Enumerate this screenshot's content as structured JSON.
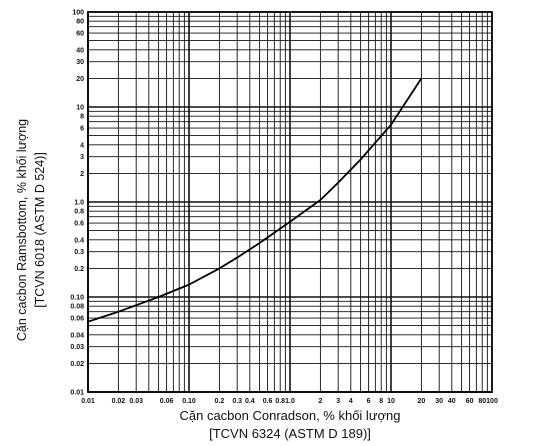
{
  "chart_data": {
    "type": "line",
    "title": "",
    "xlabel": [
      "Cặn cacbon Conradson, % khối lượng",
      "[TCVN 6324 (ASTM D 189)]"
    ],
    "ylabel": [
      "Cặn cacbon Ramsbottom, % khối lượng",
      "[TCVN 6018 (ASTM D 524)]"
    ],
    "x_scale": "log",
    "y_scale": "log",
    "xlim": [
      0.01,
      100
    ],
    "ylim": [
      0.01,
      100
    ],
    "grid": true,
    "legend": "none",
    "x_tick_labels": [
      "0.01",
      "0.02",
      "0.03",
      "0.06",
      "0.10",
      "0.2",
      "0.3",
      "0.4",
      "0.6",
      "0.8",
      "1.0",
      "2",
      "3",
      "4",
      "6",
      "8",
      "10",
      "20",
      "30",
      "40",
      "60",
      "80",
      "100"
    ],
    "y_tick_labels": [
      "0.01",
      "0.02",
      "0.03",
      "0.04",
      "0.06",
      "0.08",
      "0.10",
      "0.2",
      "0.3",
      "0.4",
      "0.6",
      "0.8",
      "1.0",
      "2",
      "3",
      "4",
      "6",
      "8",
      "10",
      "20",
      "30",
      "40",
      "60",
      "80",
      "100"
    ],
    "series": [
      {
        "x": [
          0.01,
          0.02,
          0.03,
          0.05,
          0.1,
          0.2,
          0.3,
          0.5,
          1.0,
          2,
          3,
          5,
          10,
          20
        ],
        "y": [
          0.055,
          0.07,
          0.082,
          0.1,
          0.135,
          0.2,
          0.26,
          0.37,
          0.62,
          1.05,
          1.6,
          2.8,
          6.5,
          20
        ]
      }
    ]
  }
}
